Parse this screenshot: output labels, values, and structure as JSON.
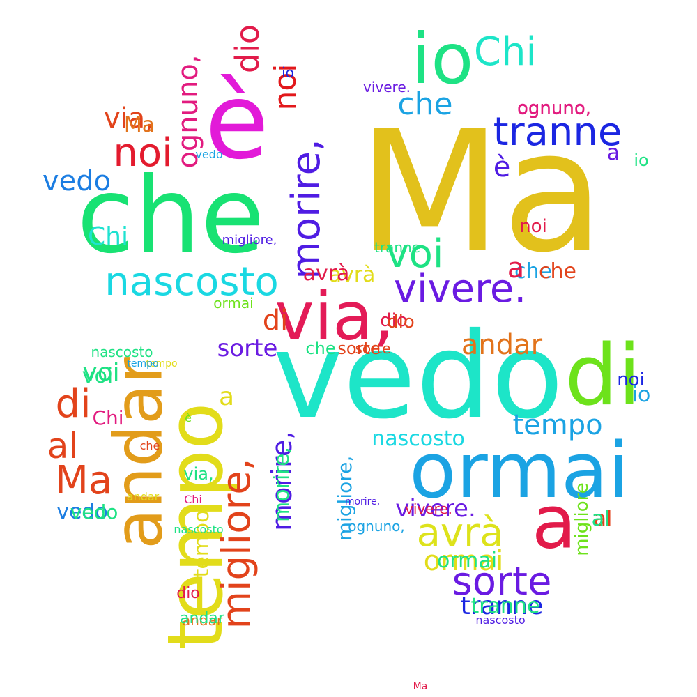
{
  "words": [
    {
      "text": "Ma",
      "color": "#e2c11c"
    },
    {
      "text": "vedo",
      "color": "#1de5c8"
    },
    {
      "text": "che",
      "color": "#18e273"
    },
    {
      "text": "è",
      "color": "#e21ad8"
    },
    {
      "text": "ormai",
      "color": "#1ba3e3"
    },
    {
      "text": "tempo",
      "color": "#e2dc1a"
    },
    {
      "text": "andar",
      "color": "#e29c1a"
    },
    {
      "text": "via,",
      "color": "#e31b57"
    },
    {
      "text": "di",
      "color": "#6de21b"
    },
    {
      "text": "io",
      "color": "#1ee284"
    },
    {
      "text": "a",
      "color": "#e21b4a"
    },
    {
      "text": "vivere.",
      "color": "#6a1be2"
    },
    {
      "text": "morire,",
      "color": "#4f1ce3"
    },
    {
      "text": "nascosto",
      "color": "#1ad8e2"
    },
    {
      "text": "noi",
      "color": "#e31b2e"
    },
    {
      "text": "tranne",
      "color": "#1b26e2"
    },
    {
      "text": "sorte",
      "color": "#6a1be2"
    },
    {
      "text": "voi",
      "color": "#1ee284"
    },
    {
      "text": "migliore,",
      "color": "#e2431b"
    },
    {
      "text": "ognuno,",
      "color": "#e21b7f"
    },
    {
      "text": "avrà",
      "color": "#dde21b"
    },
    {
      "text": "Chi",
      "color": "#1de5c8"
    },
    {
      "text": "al",
      "color": "#e2431b"
    },
    {
      "text": "dio",
      "color": "#e21b4a"
    },
    {
      "text": "vedo",
      "color": "#1b7de2"
    },
    {
      "text": "noi",
      "color": "#e2181b"
    },
    {
      "text": "che",
      "color": "#1ba3e3"
    },
    {
      "text": "nascosto",
      "color": "#1ad8e2"
    },
    {
      "text": "morire,",
      "color": "#4f1ce3"
    },
    {
      "text": "Chi",
      "color": "#1ee2d0"
    },
    {
      "text": "tranne",
      "color": "#1b26e2"
    },
    {
      "text": "via,",
      "color": "#e2431b"
    },
    {
      "text": "voi",
      "color": "#1ee284"
    },
    {
      "text": "vivere.",
      "color": "#6a1be2"
    },
    {
      "text": "andar",
      "color": "#e2731b"
    },
    {
      "text": "di",
      "color": "#e2431b"
    },
    {
      "text": "di",
      "color": "#e2431b"
    },
    {
      "text": "al",
      "color": "#e2431b"
    },
    {
      "text": "Ma",
      "color": "#e2431b"
    },
    {
      "text": "a",
      "color": "#e2dc1a"
    },
    {
      "text": "avrà",
      "color": "#e2dc1a"
    },
    {
      "text": "sorte",
      "color": "#6a1be2"
    },
    {
      "text": "tranne",
      "color": "#1ee284"
    },
    {
      "text": "tempo",
      "color": "#1ba3e3"
    },
    {
      "text": "andar",
      "color": "#e2731b"
    },
    {
      "text": "sorte",
      "color": "#e2431b"
    },
    {
      "text": "nascosto",
      "color": "#1ee284"
    },
    {
      "text": "ognuno,",
      "color": "#e21b7f"
    },
    {
      "text": "che",
      "color": "#1ba3e3"
    },
    {
      "text": "io",
      "color": "#1ee284"
    },
    {
      "text": "a",
      "color": "#6a1be2"
    },
    {
      "text": "noi",
      "color": "#1b26e2"
    },
    {
      "text": "è",
      "color": "#4f1ce3"
    },
    {
      "text": "ormai",
      "color": "#e2dc1a"
    },
    {
      "text": "dio",
      "color": "#e21b4a"
    },
    {
      "text": "che",
      "color": "#e2431b"
    },
    {
      "text": "vedo",
      "color": "#1b7de2"
    },
    {
      "text": "ormai",
      "color": "#6de21b"
    },
    {
      "text": "voi",
      "color": "#1ee284"
    },
    {
      "text": "a",
      "color": "#e21b4a"
    },
    {
      "text": "io",
      "color": "#1ba3e3"
    },
    {
      "text": "al",
      "color": "#1ee284"
    },
    {
      "text": "Ma",
      "color": "#e2731b"
    },
    {
      "text": "vivere.",
      "color": "#e21b4a"
    },
    {
      "text": "migliore,",
      "color": "#1ba3e3"
    },
    {
      "text": "morire,",
      "color": "#1ee284"
    },
    {
      "text": "tempo",
      "color": "#e2dc1a"
    },
    {
      "text": "Chi",
      "color": "#e21b7f"
    },
    {
      "text": "dio",
      "color": "#e2431b"
    },
    {
      "text": "ognuno,",
      "color": "#e21b7f"
    },
    {
      "text": "migliore",
      "color": "#6de21b"
    },
    {
      "text": "ormai",
      "color": "#1ee284"
    },
    {
      "text": "via,",
      "color": "#1ee284"
    },
    {
      "text": "sorte",
      "color": "#e2431b"
    },
    {
      "text": "che",
      "color": "#1ee284"
    },
    {
      "text": "andar",
      "color": "#1ee284"
    },
    {
      "text": "vedo",
      "color": "#1ee284"
    },
    {
      "text": "noi",
      "color": "#e21b4a"
    },
    {
      "text": "io",
      "color": "#1b26e2"
    },
    {
      "text": "dio",
      "color": "#e21b4a"
    },
    {
      "text": "tempo",
      "color": "#e2dc1a"
    },
    {
      "text": "avrà",
      "color": "#e21b4a"
    },
    {
      "text": "nascosto",
      "color": "#4f1ce3"
    },
    {
      "text": "ognuno,",
      "color": "#1ba3e3"
    },
    {
      "text": "tranne",
      "color": "#1ee284"
    },
    {
      "text": "vivere.",
      "color": "#6a1be2"
    },
    {
      "text": "che",
      "color": "#e2431b"
    },
    {
      "text": "migliore,",
      "color": "#4f1ce3"
    },
    {
      "text": "andar",
      "color": "#e2dc1a"
    },
    {
      "text": "vedo",
      "color": "#1ba3e3"
    },
    {
      "text": "è",
      "color": "#6de21b"
    },
    {
      "text": "Chi",
      "color": "#e21b7f"
    },
    {
      "text": "morire,",
      "color": "#4f1ce3"
    },
    {
      "text": "tempo",
      "color": "#1ba3e3"
    },
    {
      "text": "nascosto",
      "color": "#1ee284"
    },
    {
      "text": "Ma",
      "color": "#e21b4a"
    }
  ]
}
